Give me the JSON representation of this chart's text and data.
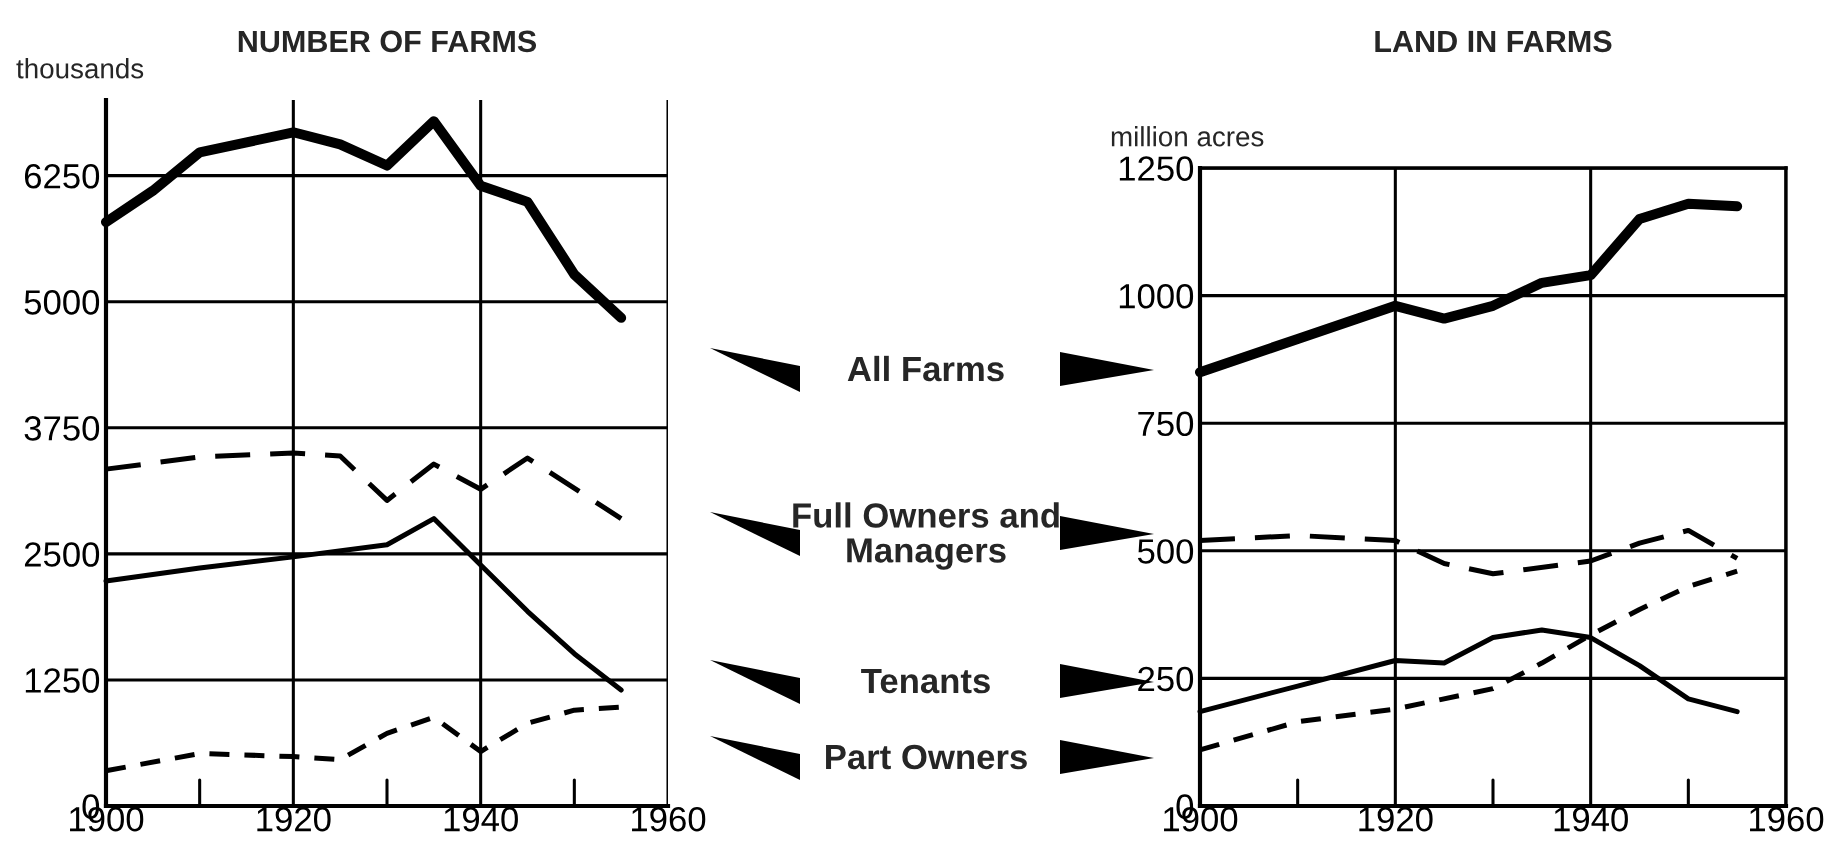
{
  "chart_data": [
    {
      "type": "line",
      "title": "NUMBER OF FARMS",
      "ylabel": "thousands",
      "xlim": [
        1900,
        1960
      ],
      "ylim": [
        0,
        7000
      ],
      "xticks": [
        1900,
        {
          "value": 1910,
          "label": null
        },
        1920,
        {
          "value": 1930,
          "label": null
        },
        1940,
        {
          "value": 1950,
          "label": null
        },
        1960
      ],
      "yticks": [
        0,
        1250,
        2500,
        3750,
        5000,
        6250
      ],
      "grid": true,
      "legend": "right",
      "series": [
        {
          "name": "All Farms",
          "color": "#000000",
          "line_style": "solid",
          "x": [
            1900,
            1905,
            1910,
            1920,
            1925,
            1930,
            1935,
            1940,
            1945,
            1950,
            1955
          ],
          "values": [
            5790,
            6100,
            6480,
            6680,
            6560,
            6350,
            6790,
            6150,
            5990,
            5270,
            4840
          ]
        },
        {
          "name": "Full Owners and Managers",
          "color": "#000000",
          "line_style": "dashed",
          "x": [
            1900,
            1910,
            1920,
            1925,
            1930,
            1935,
            1940,
            1945,
            1955
          ],
          "values": [
            3340,
            3460,
            3500,
            3470,
            3030,
            3390,
            3140,
            3450,
            2850
          ]
        },
        {
          "name": "Tenants",
          "color": "#000000",
          "line_style": "solid",
          "x": [
            1900,
            1910,
            1920,
            1930,
            1935,
            1940,
            1945,
            1950,
            1955
          ],
          "values": [
            2230,
            2360,
            2470,
            2590,
            2850,
            2390,
            1930,
            1510,
            1150
          ]
        },
        {
          "name": "Part Owners",
          "color": "#000000",
          "line_style": "dotted",
          "x": [
            1900,
            1910,
            1920,
            1925,
            1930,
            1935,
            1940,
            1945,
            1950,
            1955
          ],
          "values": [
            350,
            520,
            490,
            460,
            720,
            880,
            540,
            820,
            950,
            980
          ]
        }
      ]
    },
    {
      "type": "line",
      "title": "LAND IN FARMS",
      "ylabel": "million acres",
      "xlim": [
        1900,
        1960
      ],
      "ylim": [
        0,
        1250
      ],
      "xticks": [
        1900,
        {
          "value": 1910,
          "label": null
        },
        1920,
        {
          "value": 1930,
          "label": null
        },
        1940,
        {
          "value": 1950,
          "label": null
        },
        1960
      ],
      "yticks": [
        0,
        250,
        500,
        750,
        1000,
        1250
      ],
      "grid": true,
      "series": [
        {
          "color": "#000000",
          "line_style": "solid",
          "x": [
            1900,
            1910,
            1920,
            1925,
            1930,
            1935,
            1940,
            1945,
            1950,
            1955
          ],
          "values": [
            850,
            915,
            980,
            955,
            980,
            1025,
            1040,
            1150,
            1180,
            1175
          ]
        },
        {
          "color": "#000000",
          "line_style": "dashed",
          "x": [
            1900,
            1910,
            1920,
            1925,
            1930,
            1940,
            1945,
            1950,
            1955
          ],
          "values": [
            520,
            530,
            520,
            475,
            455,
            480,
            515,
            540,
            485
          ]
        },
        {
          "color": "#000000",
          "line_style": "solid",
          "x": [
            1900,
            1910,
            1920,
            1925,
            1930,
            1935,
            1940,
            1945,
            1950,
            1955
          ],
          "values": [
            185,
            235,
            285,
            280,
            330,
            345,
            330,
            275,
            210,
            185
          ]
        },
        {
          "color": "#000000",
          "line_style": "dotted",
          "x": [
            1900,
            1910,
            1920,
            1930,
            1935,
            1940,
            1945,
            1950,
            1955
          ],
          "values": [
            110,
            165,
            190,
            230,
            280,
            335,
            385,
            430,
            460
          ]
        }
      ]
    }
  ]
}
